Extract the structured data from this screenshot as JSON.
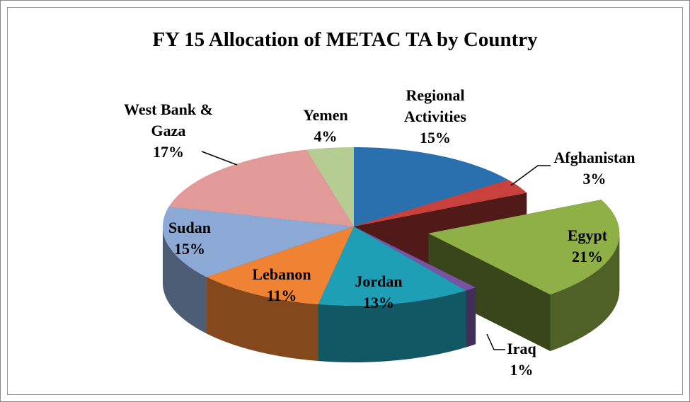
{
  "chart_data": {
    "type": "pie3d",
    "title": "FY 15 Allocation of METAC TA by Country",
    "categories": [
      "Regional Activities",
      "Afghanistan",
      "Egypt",
      "Iraq",
      "Jordan",
      "Lebanon",
      "Sudan",
      "West Bank & Gaza",
      "Yemen"
    ],
    "values": [
      15,
      3,
      21,
      1,
      13,
      11,
      15,
      17,
      4
    ],
    "value_labels": [
      "15%",
      "3%",
      "21%",
      "1%",
      "13%",
      "11%",
      "15%",
      "17%",
      "4%"
    ],
    "colors": [
      "#2b70ae",
      "#c8413d",
      "#8fb047",
      "#7a53a2",
      "#1f9fb6",
      "#ef8233",
      "#8ca9d6",
      "#e29a98",
      "#b5cd92"
    ],
    "explode": [
      false,
      false,
      true,
      false,
      false,
      false,
      false,
      false,
      false
    ],
    "start_angle": 0,
    "legend": false
  }
}
